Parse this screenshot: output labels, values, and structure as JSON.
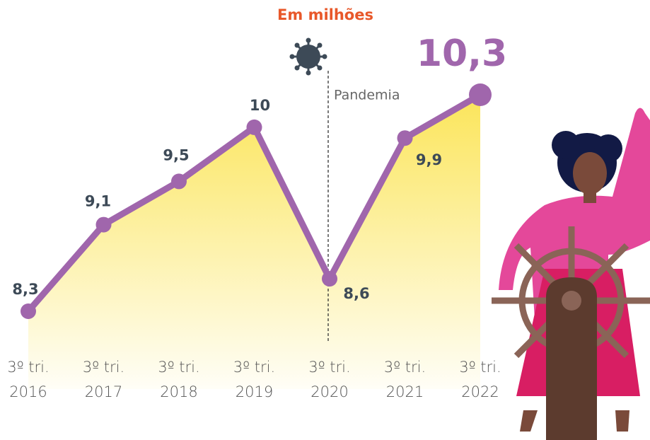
{
  "chart_data": {
    "type": "line",
    "title": "Em milhões",
    "categories": [
      [
        "3º tri.",
        "2016"
      ],
      [
        "3º tri.",
        "2017"
      ],
      [
        "3º tri.",
        "2018"
      ],
      [
        "3º tri.",
        "2019"
      ],
      [
        "3º tri.",
        "2020"
      ],
      [
        "3º tri.",
        "2021"
      ],
      [
        "3º tri.",
        "2022"
      ]
    ],
    "series": [
      {
        "color": "#a066ac",
        "values": [
          8.3,
          9.1,
          9.5,
          10,
          8.6,
          9.9,
          10.3
        ],
        "value_labels": [
          "8,3",
          "9,1",
          "9,5",
          "10",
          "8,6",
          "9,9",
          "10,3"
        ]
      }
    ],
    "annotation": {
      "text": "Pandemia",
      "category_index": 4
    },
    "title_color": "#e8582a",
    "area_color": "#fbe55a"
  }
}
